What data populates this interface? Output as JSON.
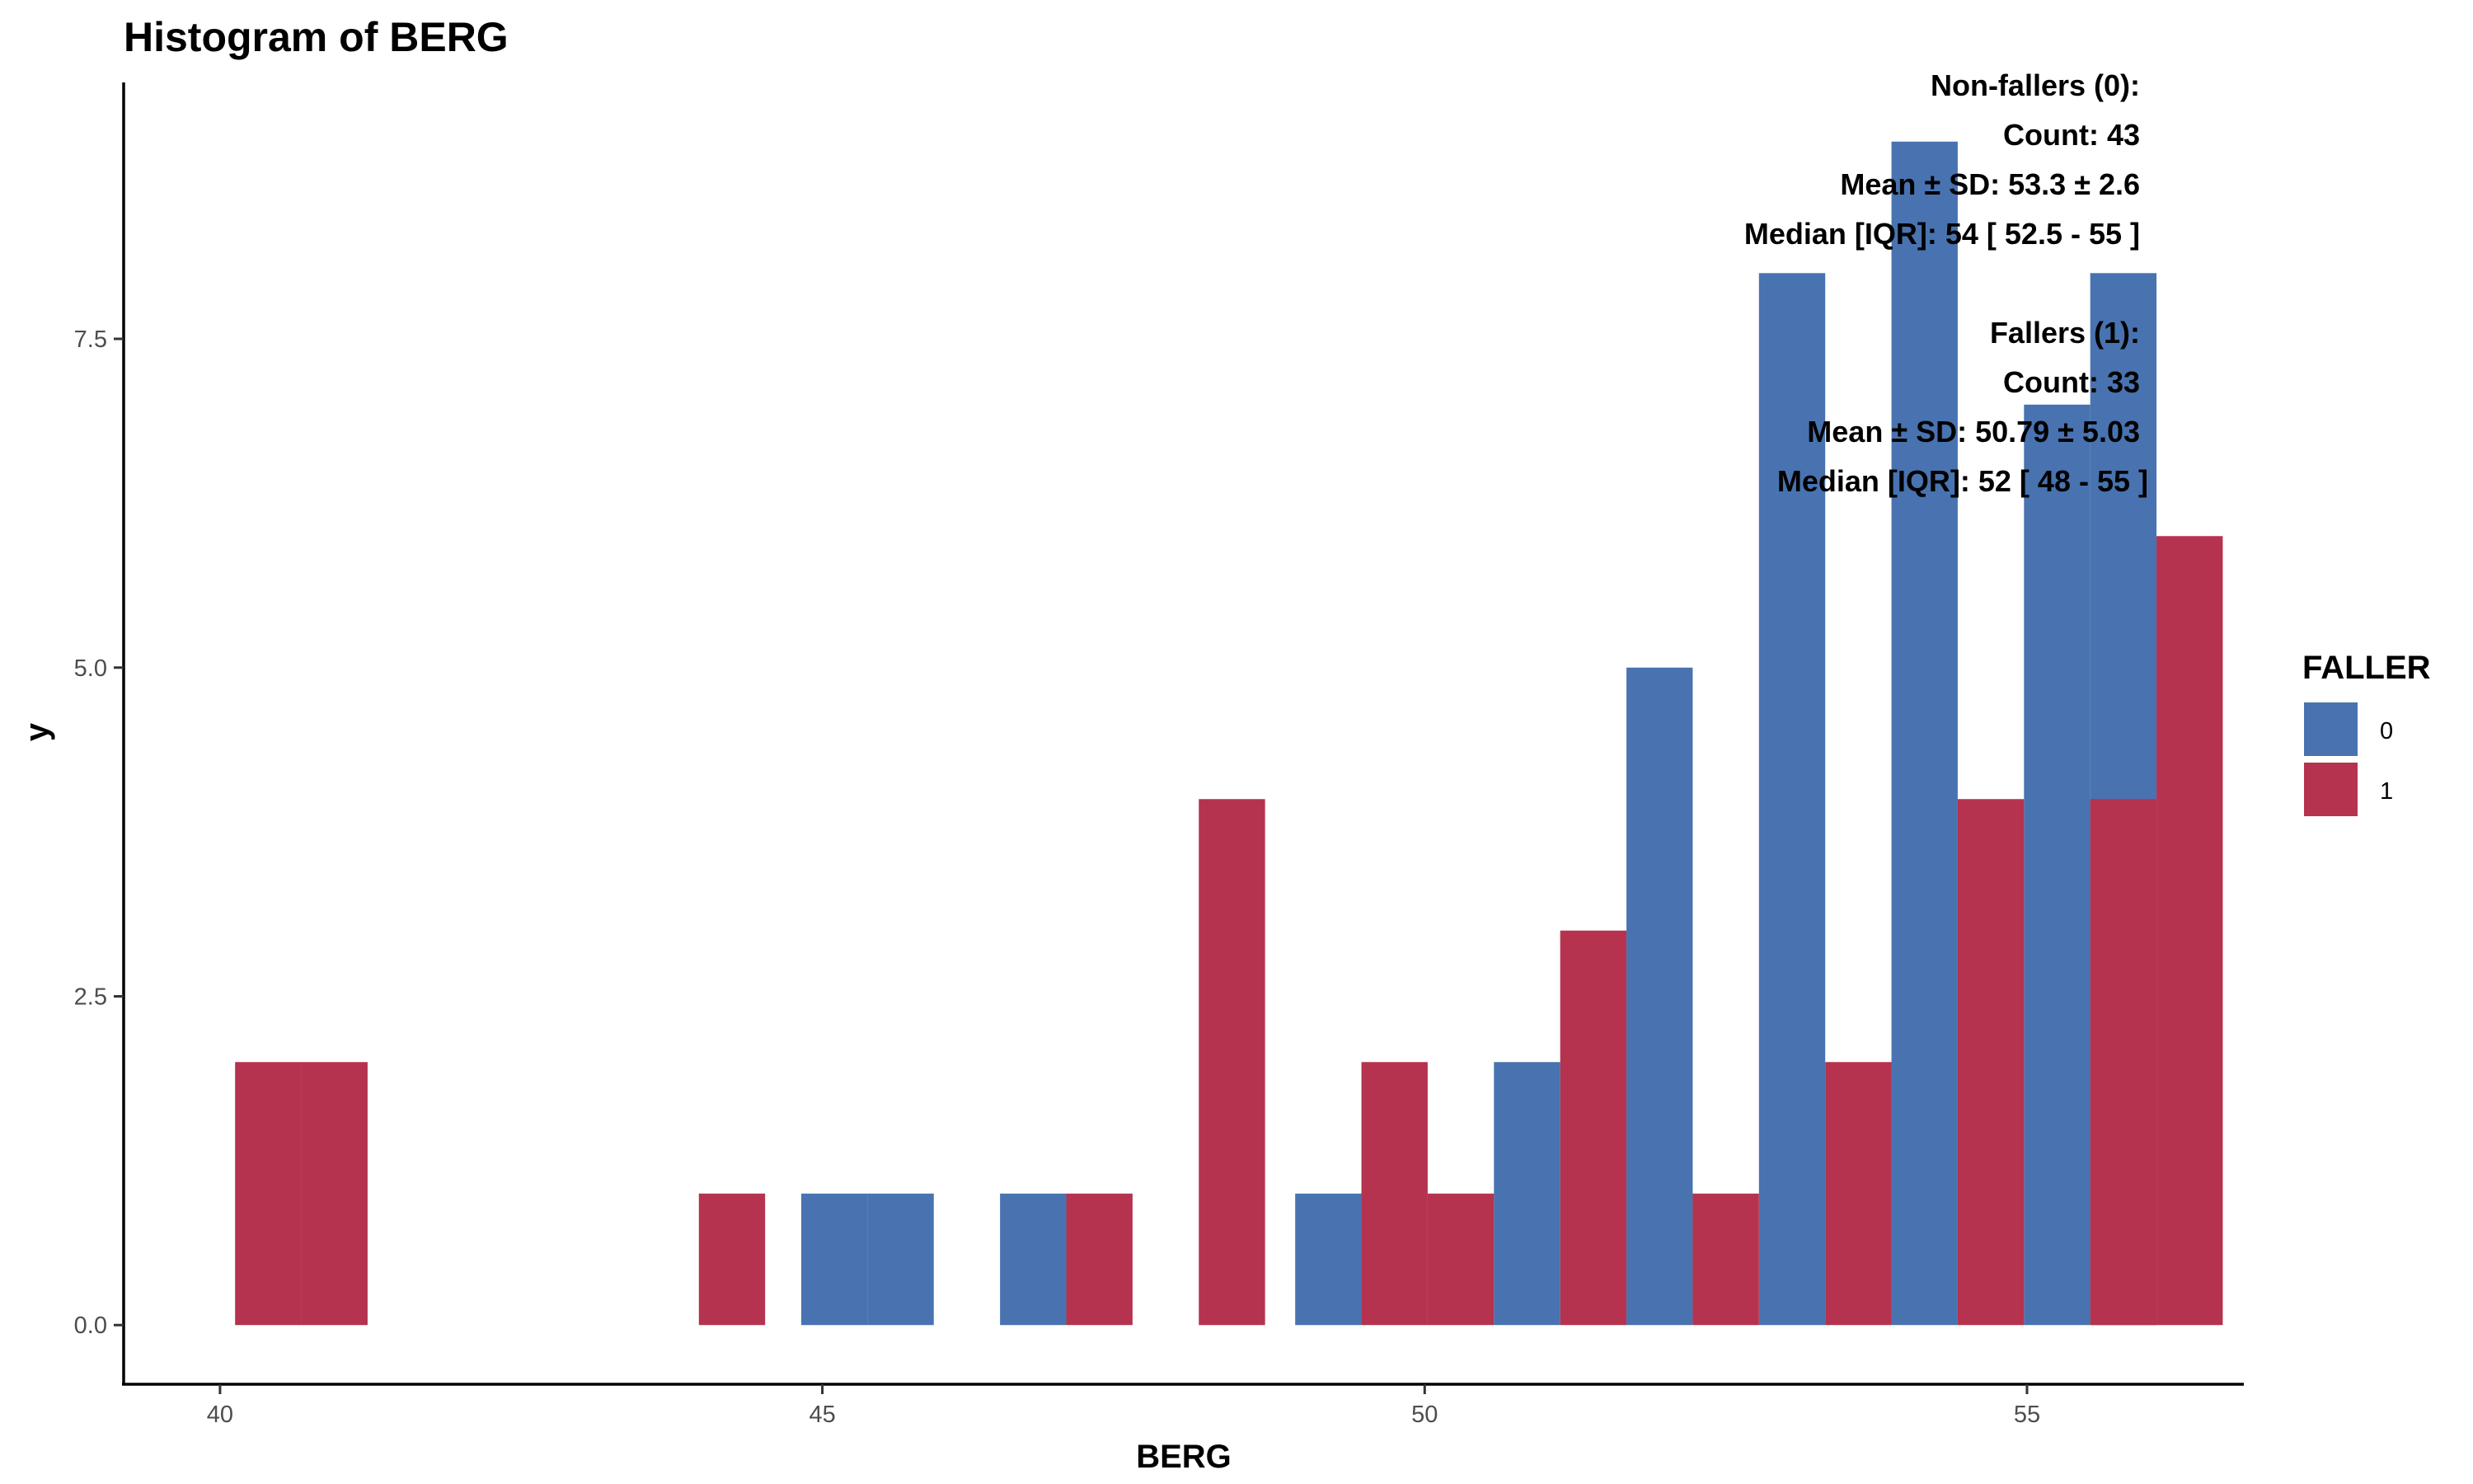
{
  "chart_data": {
    "type": "bar",
    "title": "Histogram of BERG",
    "xlabel": "BERG",
    "ylabel": "y",
    "xlim": [
      39.2,
      56.8
    ],
    "ylim": [
      -0.45,
      9.45
    ],
    "x_ticks": [
      40,
      45,
      50,
      55
    ],
    "x_tick_labels": [
      "40",
      "45",
      "50",
      "55"
    ],
    "y_ticks": [
      0,
      2.5,
      5,
      7.5
    ],
    "y_tick_labels": [
      "0.0",
      "2.5",
      "5.0",
      "7.5"
    ],
    "bar_width": 0.55,
    "grid": false,
    "legend": {
      "title": "FALLER",
      "position": "right",
      "entries": [
        {
          "label": "0",
          "color": "#4873B0"
        },
        {
          "label": "1",
          "color": "#B5334E"
        }
      ]
    },
    "series": [
      {
        "color": "#4873B0",
        "points": [
          {
            "x": 45.1,
            "y": 1
          },
          {
            "x": 45.65,
            "y": 1
          },
          {
            "x": 46.75,
            "y": 1
          },
          {
            "x": 49.2,
            "y": 1
          },
          {
            "x": 50.85,
            "y": 2
          },
          {
            "x": 51.95,
            "y": 5
          },
          {
            "x": 53.05,
            "y": 8
          },
          {
            "x": 54.15,
            "y": 9
          },
          {
            "x": 55.25,
            "y": 7
          },
          {
            "x": 55.8,
            "y": 8
          }
        ]
      },
      {
        "color": "#B5334E",
        "points": [
          {
            "x": 40.4,
            "y": 2
          },
          {
            "x": 40.95,
            "y": 2
          },
          {
            "x": 44.25,
            "y": 1
          },
          {
            "x": 47.3,
            "y": 1
          },
          {
            "x": 48.4,
            "y": 4
          },
          {
            "x": 49.75,
            "y": 2
          },
          {
            "x": 50.3,
            "y": 1
          },
          {
            "x": 51.4,
            "y": 3
          },
          {
            "x": 52.5,
            "y": 1
          },
          {
            "x": 53.6,
            "y": 2
          },
          {
            "x": 54.7,
            "y": 4
          },
          {
            "x": 55.8,
            "y": 4
          },
          {
            "x": 56.35,
            "y": 6
          }
        ]
      }
    ],
    "annotations": [
      "Non-fallers (0):",
      "Count: 43",
      "Mean ± SD: 53.3 ± 2.6",
      "Median [IQR]: 54 [ 52.5 - 55 ]",
      "Fallers (1):",
      "Count: 33",
      "Mean ± SD: 50.79 ± 5.03",
      "Median [IQR]: 52 [ 48 - 55 ]"
    ]
  }
}
